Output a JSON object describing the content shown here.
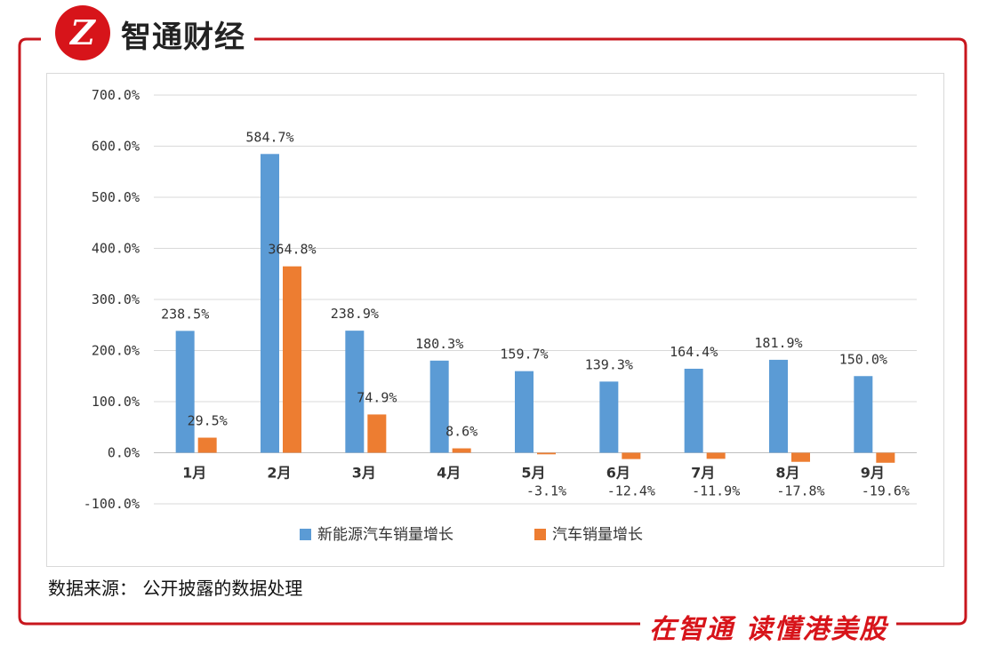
{
  "header": {
    "logo_glyph": "Z",
    "brand_name": "智通财经"
  },
  "footer": {
    "source_note": "数据来源： 公开披露的数据处理",
    "slogan": "在智通  读懂港美股"
  },
  "colors": {
    "frame": "#c8161d",
    "series1": "#5b9bd5",
    "series2": "#ed7d31"
  },
  "chart_data": {
    "type": "bar",
    "title": "",
    "categories": [
      "1月",
      "2月",
      "3月",
      "4月",
      "5月",
      "6月",
      "7月",
      "8月",
      "9月"
    ],
    "series": [
      {
        "name": "新能源汽车销量增长",
        "values": [
          238.5,
          584.7,
          238.9,
          180.3,
          159.7,
          139.3,
          164.4,
          181.9,
          150.0
        ],
        "labels": [
          "238.5%",
          "584.7%",
          "238.9%",
          "180.3%",
          "159.7%",
          "139.3%",
          "164.4%",
          "181.9%",
          "150.0%"
        ]
      },
      {
        "name": "汽车销量增长",
        "values": [
          29.5,
          364.8,
          74.9,
          8.6,
          -3.1,
          -12.4,
          -11.9,
          -17.8,
          -19.6
        ],
        "labels": [
          "29.5%",
          "364.8%",
          "74.9%",
          "8.6%",
          "-3.1%",
          "-12.4%",
          "-11.9%",
          "-17.8%",
          "-19.6%"
        ]
      }
    ],
    "yticks": [
      "700.0%",
      "600.0%",
      "500.0%",
      "400.0%",
      "300.0%",
      "200.0%",
      "100.0%",
      "0.0%",
      "-100.0%"
    ],
    "ylim": [
      -100,
      700
    ],
    "grid": true,
    "legend_position": "bottom"
  }
}
